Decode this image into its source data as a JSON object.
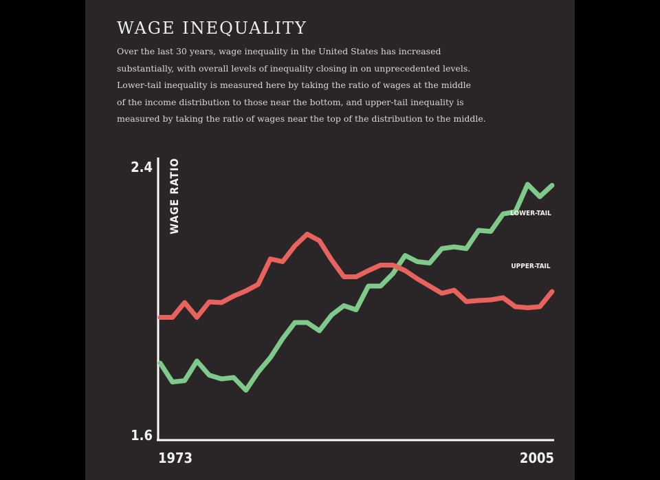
{
  "header": {
    "title": "WAGE INEQUALITY",
    "description_lines": [
      "Over the last 30 years, wage inequality in the United States has increased",
      "substantially, with overall levels of inequality closing in on unprecedented levels.",
      "Lower-tail inequality is measured here by taking the ratio of wages at the middle",
      "of the income distribution to those near the bottom, and upper-tail inequality is",
      "measured by taking the ratio of wages near the top of the distribution to the middle."
    ]
  },
  "colors": {
    "background": "#000000",
    "panel": "#2a2627",
    "text": "#ededed",
    "axis": "#ffffff",
    "upper_tail": "#e8635e",
    "lower_tail": "#7fc98a"
  },
  "chart_data": {
    "type": "line",
    "ylabel": "WAGE RATIO",
    "xlabel": "",
    "ylim": [
      1.6,
      2.4
    ],
    "xlim": [
      1973,
      2005
    ],
    "y_ticks": [
      "2.4",
      "1.6"
    ],
    "x_ticks": [
      "1973",
      "2005"
    ],
    "grid": false,
    "series": [
      {
        "name": "LOWER-TAIL",
        "color": "#7fc98a",
        "x": [
          1973,
          1974,
          1975,
          1976,
          1977,
          1978,
          1979,
          1980,
          1981,
          1982,
          1983,
          1984,
          1985,
          1986,
          1987,
          1988,
          1989,
          1990,
          1991,
          1992,
          1993,
          1994,
          1995,
          1996,
          1997,
          1998,
          1999,
          2000,
          2001,
          2002,
          2003,
          2004,
          2005
        ],
        "values": [
          1.822,
          1.767,
          1.771,
          1.828,
          1.787,
          1.776,
          1.78,
          1.743,
          1.796,
          1.838,
          1.893,
          1.94,
          1.94,
          1.916,
          1.962,
          1.989,
          1.977,
          2.046,
          2.046,
          2.082,
          2.135,
          2.117,
          2.113,
          2.155,
          2.16,
          2.155,
          2.208,
          2.205,
          2.256,
          2.262,
          2.342,
          2.306,
          2.339
        ]
      },
      {
        "name": "UPPER-TAIL",
        "color": "#e8635e",
        "x": [
          1973,
          1974,
          1975,
          1976,
          1977,
          1978,
          1979,
          1980,
          1981,
          1982,
          1983,
          1984,
          1985,
          1986,
          1987,
          1988,
          1989,
          1990,
          1991,
          1992,
          1993,
          1994,
          1995,
          1996,
          1997,
          1998,
          1999,
          2000,
          2001,
          2002,
          2003,
          2004,
          2005
        ],
        "values": [
          1.955,
          1.955,
          1.998,
          1.955,
          2.0,
          1.998,
          2.017,
          2.032,
          2.051,
          2.125,
          2.117,
          2.163,
          2.197,
          2.178,
          2.122,
          2.073,
          2.073,
          2.091,
          2.107,
          2.107,
          2.091,
          2.067,
          2.046,
          2.025,
          2.034,
          2.001,
          2.004,
          2.006,
          2.012,
          1.986,
          1.983,
          1.986,
          2.03
        ]
      }
    ]
  }
}
